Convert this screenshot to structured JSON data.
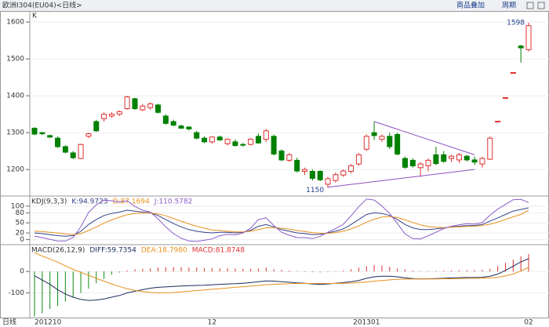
{
  "header": {
    "title": "欧洲I304(EU04)<日线>",
    "buttons": [
      "商品叠加",
      "周期"
    ]
  },
  "chart_data": [
    {
      "type": "candlestick",
      "ylabel": "K",
      "xlabel": "日线",
      "categories": [
        "201210",
        null,
        null,
        null,
        null,
        null,
        null,
        null,
        null,
        null,
        null,
        null,
        null,
        null,
        null,
        null,
        null,
        null,
        null,
        null,
        null,
        null,
        null,
        "12",
        null,
        null,
        null,
        null,
        null,
        null,
        null,
        null,
        null,
        null,
        null,
        null,
        null,
        null,
        null,
        null,
        null,
        null,
        null,
        "201301",
        null,
        null,
        null,
        null,
        null,
        null,
        null,
        null,
        null,
        null,
        null,
        null,
        null,
        null,
        null,
        null,
        null,
        null,
        null,
        null,
        "02"
      ],
      "open": [
        1312,
        1300,
        1292,
        1285,
        1262,
        1245,
        1230,
        1290,
        1330,
        1338,
        1345,
        1350,
        1365,
        1392,
        1362,
        1368,
        1375,
        1345,
        1330,
        1318,
        1315,
        1300,
        1285,
        1275,
        1288,
        1270,
        1275,
        1268,
        1268,
        1290,
        1282,
        1290,
        1250,
        1225,
        1225,
        1195,
        1195,
        1195,
        1160,
        1170,
        1185,
        1195,
        1215,
        1255,
        1300,
        1282,
        1290,
        1295,
        1230,
        1225,
        1205,
        1210,
        1240,
        1240,
        1230,
        1226,
        1236,
        1226,
        1215,
        1228,
        1330,
        1394,
        1462,
        1535,
        1525
      ],
      "high": [
        1315,
        1302,
        1295,
        1290,
        1266,
        1250,
        1270,
        1300,
        1335,
        1355,
        1355,
        1360,
        1400,
        1395,
        1378,
        1382,
        1378,
        1350,
        1335,
        1322,
        1318,
        1305,
        1290,
        1290,
        1292,
        1285,
        1282,
        1272,
        1285,
        1298,
        1310,
        1295,
        1255,
        1245,
        1232,
        1205,
        1200,
        1198,
        1180,
        1192,
        1200,
        1215,
        1245,
        1295,
        1330,
        1295,
        1300,
        1300,
        1235,
        1230,
        1220,
        1230,
        1262,
        1250,
        1240,
        1245,
        1240,
        1235,
        1235,
        1290,
        1332,
        1396,
        1464,
        1538,
        1598
      ],
      "low": [
        1293,
        1293,
        1285,
        1258,
        1244,
        1228,
        1228,
        1285,
        1302,
        1330,
        1340,
        1345,
        1362,
        1362,
        1358,
        1362,
        1352,
        1322,
        1318,
        1310,
        1306,
        1282,
        1272,
        1270,
        1278,
        1265,
        1262,
        1262,
        1265,
        1270,
        1275,
        1238,
        1222,
        1220,
        1192,
        1185,
        1170,
        1168,
        1150,
        1165,
        1180,
        1190,
        1210,
        1250,
        1280,
        1275,
        1255,
        1238,
        1202,
        1205,
        1180,
        1195,
        1212,
        1218,
        1220,
        1218,
        1222,
        1212,
        1205,
        1226,
        1329,
        1393,
        1461,
        1490,
        1520
      ],
      "close": [
        1296,
        1297,
        1288,
        1262,
        1247,
        1232,
        1268,
        1297,
        1305,
        1350,
        1350,
        1357,
        1397,
        1365,
        1372,
        1378,
        1355,
        1325,
        1320,
        1312,
        1310,
        1285,
        1275,
        1288,
        1280,
        1282,
        1265,
        1266,
        1282,
        1272,
        1305,
        1242,
        1226,
        1240,
        1196,
        1200,
        1176,
        1172,
        1175,
        1186,
        1196,
        1210,
        1240,
        1290,
        1292,
        1290,
        1262,
        1242,
        1206,
        1210,
        1215,
        1225,
        1216,
        1222,
        1236,
        1240,
        1226,
        1220,
        1230,
        1285,
        1331,
        1395,
        1463,
        1530,
        1590
      ],
      "up_color": "#e03030",
      "down_color": "#008000",
      "ylim": [
        1128,
        1630
      ],
      "yticks": [
        1200,
        1300,
        1400,
        1500,
        1600
      ],
      "grid": true,
      "annotations": [
        {
          "label": "1598",
          "x": 64,
          "y": 1598
        },
        {
          "label": "1150",
          "x": 38,
          "y": 1150
        }
      ],
      "trendlines": [
        {
          "x": [
            44,
            57
          ],
          "y": [
            1330,
            1240
          ],
          "color": "#9050c0"
        },
        {
          "x": [
            38,
            57
          ],
          "y": [
            1152,
            1200
          ],
          "color": "#9050c0"
        }
      ]
    },
    {
      "type": "line",
      "title": "KDJ(9,3,3)",
      "ylim": [
        -15,
        130
      ],
      "yticks": [
        0,
        20,
        50,
        80,
        100
      ],
      "grid": true,
      "series": [
        {
          "name": "K:94.9723",
          "color": "#34428a",
          "values": [
            20,
            18,
            15,
            12,
            10,
            12,
            25,
            45,
            60,
            72,
            78,
            82,
            88,
            85,
            82,
            80,
            72,
            60,
            48,
            38,
            30,
            25,
            22,
            20,
            22,
            22,
            20,
            22,
            28,
            40,
            45,
            38,
            30,
            25,
            20,
            18,
            15,
            16,
            20,
            25,
            32,
            45,
            60,
            75,
            80,
            78,
            72,
            60,
            45,
            35,
            30,
            30,
            32,
            35,
            38,
            40,
            42,
            42,
            45,
            55,
            65,
            75,
            85,
            90,
            94.9723
          ]
        },
        {
          "name": "D:87.1694",
          "color": "#e8901c",
          "values": [
            25,
            24,
            22,
            20,
            17,
            15,
            18,
            27,
            38,
            49,
            59,
            67,
            74,
            78,
            79,
            79,
            77,
            71,
            63,
            55,
            47,
            40,
            34,
            29,
            27,
            25,
            23,
            23,
            25,
            30,
            35,
            36,
            34,
            31,
            27,
            24,
            21,
            19,
            19,
            21,
            25,
            32,
            41,
            52,
            61,
            67,
            69,
            66,
            59,
            51,
            44,
            39,
            37,
            36,
            37,
            38,
            39,
            40,
            42,
            46,
            52,
            60,
            68,
            75,
            87.1694
          ]
        },
        {
          "name": "J:110.5782",
          "color": "#8a5cc8",
          "values": [
            10,
            6,
            1,
            -4,
            -4,
            6,
            39,
            81,
            104,
            118,
            116,
            112,
            116,
            99,
            88,
            82,
            62,
            38,
            18,
            4,
            -4,
            -5,
            -2,
            2,
            12,
            16,
            14,
            20,
            34,
            60,
            65,
            42,
            22,
            13,
            6,
            6,
            3,
            10,
            22,
            33,
            46,
            71,
            98,
            121,
            118,
            100,
            78,
            48,
            17,
            3,
            2,
            12,
            22,
            33,
            40,
            44,
            48,
            46,
            51,
            73,
            91,
            105,
            119,
            120,
            110.5782
          ]
        }
      ]
    },
    {
      "type": "combo",
      "title": "MACD(26,12,9)",
      "ylim": [
        -215,
        125
      ],
      "yticks": [
        -100,
        0
      ],
      "grid": true,
      "series": [
        {
          "name": "DIFF:59.7354",
          "type": "line",
          "color": "#1c2c5c",
          "values": [
            -20,
            -40,
            -60,
            -85,
            -105,
            -120,
            -130,
            -135,
            -133,
            -128,
            -120,
            -112,
            -100,
            -92,
            -85,
            -78,
            -74,
            -72,
            -70,
            -68,
            -66,
            -65,
            -64,
            -62,
            -60,
            -58,
            -57,
            -55,
            -52,
            -48,
            -44,
            -45,
            -48,
            -50,
            -53,
            -55,
            -58,
            -60,
            -58,
            -55,
            -52,
            -48,
            -42,
            -32,
            -25,
            -22,
            -22,
            -25,
            -30,
            -33,
            -35,
            -34,
            -33,
            -32,
            -30,
            -29,
            -28,
            -28,
            -27,
            -22,
            -12,
            5,
            25,
            45,
            59.7354
          ]
        },
        {
          "name": "DEA:18.7980",
          "type": "line",
          "color": "#e8901c",
          "values": [
            87,
            72,
            58,
            44,
            26,
            10,
            -4,
            -18,
            -32,
            -45,
            -58,
            -70,
            -80,
            -88,
            -94,
            -98,
            -100,
            -100,
            -98,
            -95,
            -92,
            -89,
            -86,
            -83,
            -80,
            -77,
            -74,
            -71,
            -68,
            -65,
            -62,
            -60,
            -58,
            -57,
            -56,
            -56,
            -56,
            -56,
            -56,
            -56,
            -55,
            -54,
            -52,
            -49,
            -45,
            -42,
            -39,
            -37,
            -36,
            -35,
            -35,
            -35,
            -35,
            -34,
            -34,
            -33,
            -32,
            -32,
            -31,
            -30,
            -27,
            -21,
            -12,
            2,
            18.798
          ]
        },
        {
          "name": "MACD:81.8748",
          "type": "bar",
          "color": "#e03030",
          "down_color": "#108a10",
          "values": [
            -210,
            -195,
            -175,
            -160,
            -140,
            -120,
            -100,
            -80,
            -55,
            -35,
            -15,
            -5,
            5,
            10,
            12,
            15,
            18,
            20,
            20,
            20,
            18,
            18,
            16,
            16,
            15,
            15,
            14,
            12,
            12,
            14,
            18,
            10,
            8,
            5,
            2,
            -2,
            -3,
            -4,
            -2,
            2,
            5,
            10,
            18,
            25,
            30,
            28,
            22,
            15,
            10,
            5,
            2,
            2,
            3,
            4,
            5,
            6,
            6,
            6,
            8,
            12,
            25,
            40,
            55,
            70,
            81.8748
          ]
        }
      ]
    }
  ]
}
